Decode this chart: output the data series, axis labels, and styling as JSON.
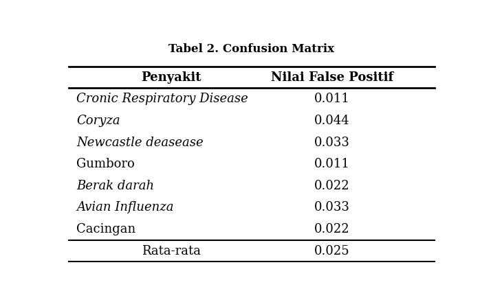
{
  "title": "Tabel 2. Confusion Matrix",
  "col_headers": [
    "Penyakit",
    "Nilai False Positif"
  ],
  "rows": [
    [
      "Cronic Respiratory Disease",
      "0.011"
    ],
    [
      "Coryza",
      "0.044"
    ],
    [
      "Newcastle deasease",
      "0.033"
    ],
    [
      "Gumboro",
      "0.011"
    ],
    [
      "Berak darah",
      "0.022"
    ],
    [
      "Avian Influenza",
      "0.033"
    ],
    [
      "Cacingan",
      "0.022"
    ]
  ],
  "footer_label": "Rata-rata",
  "footer_value": "0.025",
  "italic_rows": [
    0,
    1,
    2,
    4,
    5
  ],
  "bg_color": "#ffffff",
  "text_color": "#000000",
  "title_fontsize": 12,
  "header_fontsize": 13,
  "body_fontsize": 13,
  "footer_fontsize": 13
}
